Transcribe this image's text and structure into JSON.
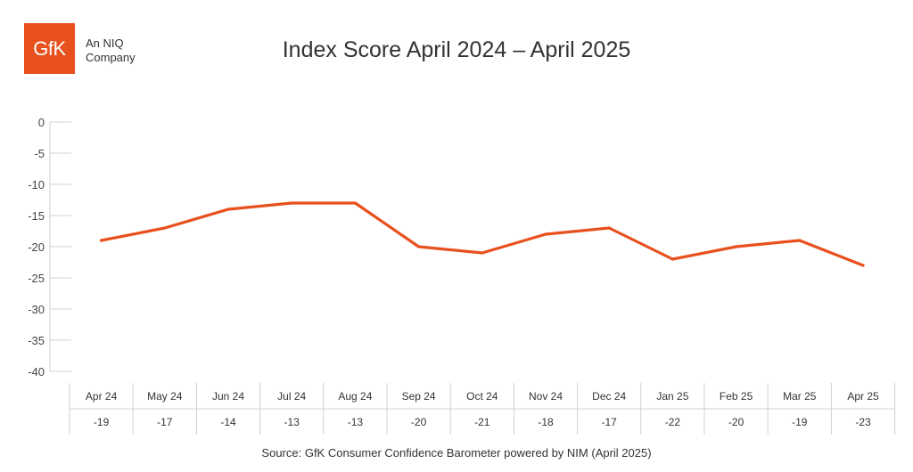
{
  "logo": {
    "mark": "GfK",
    "line1": "An NIQ",
    "line2": "Company",
    "color": "#e8501e"
  },
  "chart_data": {
    "type": "line",
    "title": "Index Score April 2024 – April 2025",
    "source": "Source: GfK Consumer Confidence Barometer powered by NIM (April 2025)",
    "categories": [
      "Apr 24",
      "May 24",
      "Jun 24",
      "Jul 24",
      "Aug 24",
      "Sep 24",
      "Oct 24",
      "Nov 24",
      "Dec 24",
      "Jan 25",
      "Feb 25",
      "Mar 25",
      "Apr 25"
    ],
    "series": [
      {
        "values": [
          -19,
          -17,
          -14,
          -13,
          -13,
          -20,
          -21,
          -18,
          -17,
          -22,
          -20,
          -19,
          -23
        ],
        "color": "#e8501e"
      }
    ],
    "value_labels": [
      "-19",
      "-17",
      "-14",
      "-13",
      "-13",
      "-20",
      "-21",
      "-18",
      "-17",
      "-22",
      "-20",
      "-19",
      "-23"
    ],
    "yticks": [
      "0",
      "-5",
      "-10",
      "-15",
      "-20",
      "-25",
      "-30",
      "-35",
      "-40"
    ],
    "ylim": [
      -40,
      0
    ],
    "grid": false,
    "legend": "none"
  }
}
